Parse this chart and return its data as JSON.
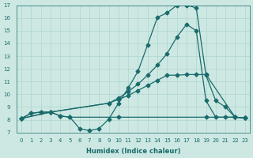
{
  "xlabel": "Humidex (Indice chaleur)",
  "bg_color": "#cde8e3",
  "grid_color": "#aed4ce",
  "line_color": "#1a6b6b",
  "xlim": [
    -0.5,
    23.5
  ],
  "ylim": [
    7,
    17
  ],
  "xticks": [
    0,
    1,
    2,
    3,
    4,
    5,
    6,
    7,
    8,
    9,
    10,
    11,
    12,
    13,
    14,
    15,
    16,
    17,
    18,
    19,
    20,
    21,
    22,
    23
  ],
  "yticks": [
    7,
    8,
    9,
    10,
    11,
    12,
    13,
    14,
    15,
    16,
    17
  ],
  "series": [
    {
      "x": [
        0,
        1,
        2,
        3,
        4,
        5,
        6,
        7,
        8,
        9,
        10,
        11,
        12,
        13,
        14,
        15,
        16,
        17,
        18,
        19,
        20,
        21,
        22,
        23
      ],
      "y": [
        8.1,
        8.5,
        8.6,
        8.6,
        8.3,
        8.2,
        7.3,
        7.15,
        7.3,
        8.05,
        9.3,
        10.5,
        11.8,
        13.9,
        16.05,
        16.4,
        17.0,
        17.0,
        16.8,
        11.5,
        9.5,
        9.0,
        8.2,
        8.15
      ]
    },
    {
      "x": [
        0,
        3,
        9,
        10,
        11,
        12,
        13,
        14,
        15,
        16,
        17,
        18,
        19,
        20,
        21,
        22,
        23
      ],
      "y": [
        8.1,
        8.6,
        9.3,
        9.7,
        10.2,
        10.8,
        11.5,
        12.3,
        13.2,
        14.5,
        15.5,
        15.0,
        9.5,
        8.2,
        8.2,
        8.2,
        8.15
      ]
    },
    {
      "x": [
        0,
        3,
        9,
        10,
        11,
        12,
        13,
        14,
        15,
        16,
        17,
        18,
        19,
        22,
        23
      ],
      "y": [
        8.1,
        8.6,
        9.3,
        9.6,
        9.9,
        10.3,
        10.7,
        11.1,
        11.5,
        11.5,
        11.55,
        11.55,
        11.55,
        8.2,
        8.15
      ]
    },
    {
      "x": [
        0,
        1,
        2,
        3,
        4,
        5,
        10,
        19,
        22,
        23
      ],
      "y": [
        8.1,
        8.5,
        8.6,
        8.6,
        8.3,
        8.2,
        8.2,
        8.2,
        8.2,
        8.15
      ]
    }
  ]
}
